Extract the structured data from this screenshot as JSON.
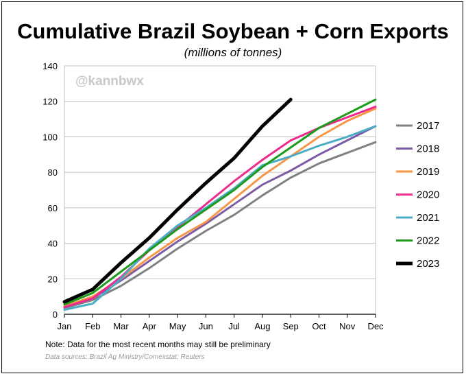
{
  "header": {
    "title": "Cumulative Brazil Soybean + Corn Exports",
    "subtitle": "(millions  of tonnes)",
    "watermark": "@kannbwx"
  },
  "footer": {
    "note": "Note: Data for the most recent months may still be preliminary",
    "source": "Data sources: Brazil Ag Ministry/Comexstat; Reuters"
  },
  "chart_data": {
    "type": "line",
    "title": "Cumulative Brazil Soybean + Corn Exports",
    "subtitle": "(millions  of tonnes)",
    "x": [
      "Jan",
      "Feb",
      "Mar",
      "Apr",
      "May",
      "Jun",
      "Jul",
      "Aug",
      "Sep",
      "Oct",
      "Nov",
      "Dec"
    ],
    "ylim": [
      0,
      140
    ],
    "yticks": [
      0,
      20,
      40,
      60,
      80,
      100,
      120,
      140
    ],
    "grid": true,
    "legend": "right",
    "series": [
      {
        "name": "2017",
        "color": "#808080",
        "width": 3,
        "values": [
          3.5,
          8,
          16,
          26,
          37,
          47,
          56,
          67,
          77,
          85,
          91,
          97
        ]
      },
      {
        "name": "2018",
        "color": "#7b5aa6",
        "width": 3,
        "values": [
          4,
          9,
          19,
          30,
          41,
          51,
          62,
          73,
          81,
          90,
          98,
          106
        ]
      },
      {
        "name": "2019",
        "color": "#f79646",
        "width": 3,
        "values": [
          4.5,
          10,
          20,
          32,
          43,
          52,
          65,
          78,
          89,
          100,
          109,
          116
        ]
      },
      {
        "name": "2020",
        "color": "#ec2b8c",
        "width": 3,
        "values": [
          4,
          9,
          21,
          36,
          49,
          62,
          75,
          87,
          98,
          105,
          111,
          117
        ]
      },
      {
        "name": "2021",
        "color": "#4bacc6",
        "width": 3,
        "values": [
          2.5,
          6,
          20,
          37,
          50,
          60,
          71,
          84,
          89,
          95,
          100,
          106
        ]
      },
      {
        "name": "2022",
        "color": "#1a9c1a",
        "width": 3,
        "values": [
          5.5,
          12,
          24,
          36,
          48,
          59,
          70,
          83,
          94,
          105,
          113,
          121
        ]
      },
      {
        "name": "2023",
        "color": "#000000",
        "width": 5,
        "values": [
          7,
          14,
          29,
          43,
          59,
          74,
          88,
          106,
          121,
          null,
          null,
          null
        ]
      }
    ]
  }
}
